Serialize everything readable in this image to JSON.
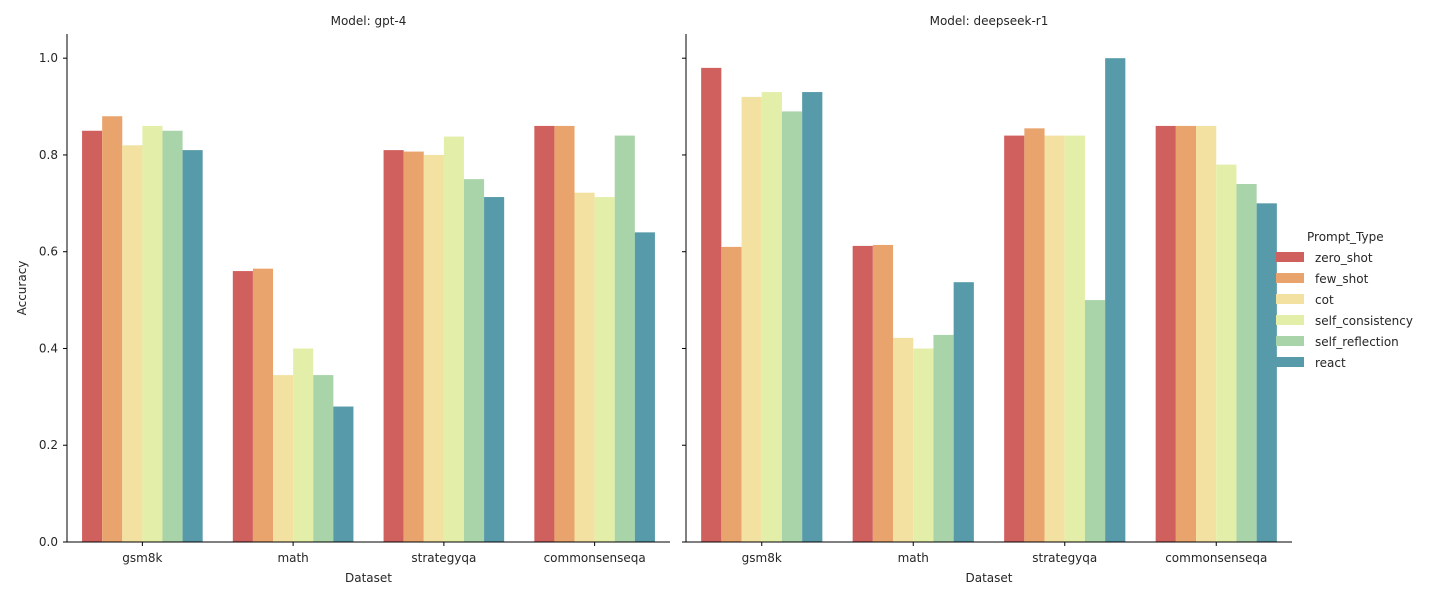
{
  "chart_data": {
    "type": "bar",
    "facet_titles": [
      "Model: gpt-4",
      "Model: deepseek-r1"
    ],
    "xlabel": "Dataset",
    "ylabel": "Accuracy",
    "ylim": [
      0,
      1.05
    ],
    "yticks": [
      "0.0",
      "0.2",
      "0.4",
      "0.6",
      "0.8",
      "1.0"
    ],
    "categories": [
      "gsm8k",
      "math",
      "strategyqa",
      "commonsenseqa"
    ],
    "legend": {
      "title": "Prompt_Type",
      "placement": "right",
      "entries": [
        "zero_shot",
        "few_shot",
        "cot",
        "self_consistency",
        "self_reflection",
        "react"
      ]
    },
    "colors": [
      "#d0605e",
      "#e9a46d",
      "#f3e1a1",
      "#e3efa8",
      "#a9d3a9",
      "#579aaa"
    ],
    "grid": false,
    "panels": [
      {
        "model": "gpt-4",
        "series": [
          {
            "name": "zero_shot",
            "values": [
              0.85,
              0.56,
              0.81,
              0.86
            ]
          },
          {
            "name": "few_shot",
            "values": [
              0.88,
              0.565,
              0.807,
              0.86
            ]
          },
          {
            "name": "cot",
            "values": [
              0.82,
              0.345,
              0.8,
              0.722
            ]
          },
          {
            "name": "self_consistency",
            "values": [
              0.86,
              0.4,
              0.838,
              0.713
            ]
          },
          {
            "name": "self_reflection",
            "values": [
              0.85,
              0.345,
              0.75,
              0.84
            ]
          },
          {
            "name": "react",
            "values": [
              0.81,
              0.28,
              0.713,
              0.64
            ]
          }
        ]
      },
      {
        "model": "deepseek-r1",
        "series": [
          {
            "name": "zero_shot",
            "values": [
              0.98,
              0.612,
              0.84,
              0.86
            ]
          },
          {
            "name": "few_shot",
            "values": [
              0.61,
              0.614,
              0.855,
              0.86
            ]
          },
          {
            "name": "cot",
            "values": [
              0.92,
              0.422,
              0.84,
              0.86
            ]
          },
          {
            "name": "self_consistency",
            "values": [
              0.93,
              0.4,
              0.84,
              0.78
            ]
          },
          {
            "name": "self_reflection",
            "values": [
              0.89,
              0.428,
              0.5,
              0.74
            ]
          },
          {
            "name": "react",
            "values": [
              0.93,
              0.537,
              1.0,
              0.7
            ]
          }
        ]
      }
    ]
  }
}
